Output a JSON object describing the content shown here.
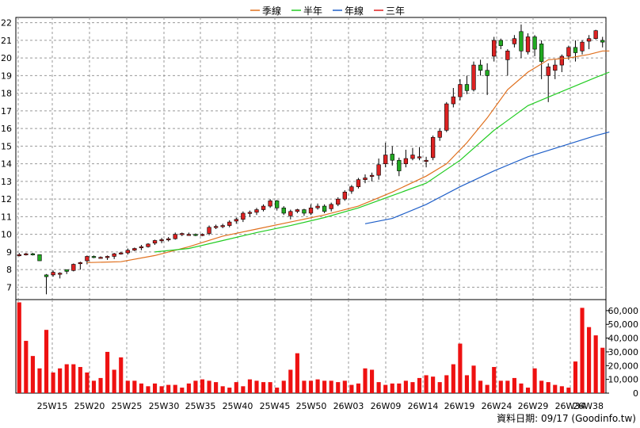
{
  "legend": {
    "items": [
      {
        "label": "季線",
        "color": "#e0701e"
      },
      {
        "label": "半年",
        "color": "#22cc22"
      },
      {
        "label": "年線",
        "color": "#1f5fc8"
      },
      {
        "label": "三年",
        "color": "#e02020"
      }
    ]
  },
  "footer": {
    "text": "資料日期: 09/17 (Goodinfo.tw)"
  },
  "colors": {
    "up": "#dd2222",
    "down": "#22aa22",
    "volume": "#ee1111",
    "grid": "#999999"
  },
  "chart_data": [
    {
      "type": "candlestick",
      "title": "",
      "ylim": [
        6.3,
        22.3
      ],
      "y_ticks": [
        "7",
        "8",
        "9",
        "10",
        "11",
        "12",
        "13",
        "14",
        "15",
        "16",
        "17",
        "18",
        "19",
        "20",
        "21",
        "22"
      ],
      "x_ticks": [
        "25W15",
        "25W20",
        "25W25",
        "25W30",
        "25W35",
        "25W40",
        "25W45",
        "25W50",
        "26W03",
        "26W09",
        "26W14",
        "26W19",
        "26W24",
        "26W29",
        "26W34",
        "26W38"
      ],
      "ohlc": [
        [
          8.85,
          8.95,
          8.75,
          8.85
        ],
        [
          8.85,
          8.95,
          8.8,
          8.9
        ],
        [
          8.9,
          8.95,
          8.8,
          8.85
        ],
        [
          8.85,
          8.85,
          8.5,
          8.5
        ],
        [
          7.7,
          7.75,
          6.6,
          7.6
        ],
        [
          7.7,
          7.95,
          7.6,
          7.85
        ],
        [
          7.75,
          7.85,
          7.5,
          7.8
        ],
        [
          8.0,
          8.0,
          7.75,
          7.9
        ],
        [
          7.95,
          8.35,
          7.9,
          8.3
        ],
        [
          8.4,
          8.45,
          8.0,
          8.4
        ],
        [
          8.5,
          8.8,
          8.3,
          8.75
        ],
        [
          8.75,
          8.8,
          8.65,
          8.7
        ],
        [
          8.7,
          8.75,
          8.65,
          8.7
        ],
        [
          8.7,
          8.8,
          8.55,
          8.75
        ],
        [
          8.75,
          8.95,
          8.6,
          8.9
        ],
        [
          8.9,
          9.0,
          8.85,
          8.95
        ],
        [
          8.95,
          9.2,
          8.85,
          9.1
        ],
        [
          9.1,
          9.25,
          9.05,
          9.2
        ],
        [
          9.25,
          9.4,
          9.1,
          9.3
        ],
        [
          9.3,
          9.5,
          9.25,
          9.45
        ],
        [
          9.5,
          9.7,
          9.4,
          9.65
        ],
        [
          9.65,
          9.8,
          9.5,
          9.7
        ],
        [
          9.7,
          9.85,
          9.6,
          9.75
        ],
        [
          9.75,
          10.1,
          9.7,
          10.0
        ],
        [
          10.0,
          10.1,
          9.9,
          10.05
        ],
        [
          10.0,
          10.1,
          9.95,
          10.0
        ],
        [
          10.0,
          10.05,
          9.9,
          9.95
        ],
        [
          9.95,
          10.05,
          9.9,
          10.0
        ],
        [
          10.05,
          10.5,
          9.95,
          10.4
        ],
        [
          10.4,
          10.55,
          10.3,
          10.45
        ],
        [
          10.45,
          10.6,
          10.35,
          10.5
        ],
        [
          10.5,
          10.8,
          10.4,
          10.7
        ],
        [
          10.75,
          10.95,
          10.6,
          10.85
        ],
        [
          10.85,
          11.3,
          10.7,
          11.2
        ],
        [
          11.2,
          11.35,
          11.0,
          11.25
        ],
        [
          11.25,
          11.5,
          11.1,
          11.4
        ],
        [
          11.4,
          11.7,
          11.3,
          11.6
        ],
        [
          11.6,
          12.0,
          11.5,
          11.9
        ],
        [
          11.9,
          11.95,
          11.35,
          11.5
        ],
        [
          11.5,
          11.6,
          11.1,
          11.2
        ],
        [
          11.05,
          11.4,
          10.85,
          11.3
        ],
        [
          11.3,
          11.45,
          11.2,
          11.4
        ],
        [
          11.4,
          11.45,
          11.05,
          11.2
        ],
        [
          11.2,
          11.7,
          11.1,
          11.5
        ],
        [
          11.5,
          11.75,
          11.4,
          11.6
        ],
        [
          11.6,
          11.7,
          11.2,
          11.3
        ],
        [
          11.45,
          11.8,
          11.3,
          11.7
        ],
        [
          11.7,
          12.1,
          11.6,
          12.0
        ],
        [
          12.0,
          12.5,
          11.9,
          12.4
        ],
        [
          12.45,
          12.8,
          12.3,
          12.7
        ],
        [
          12.7,
          13.2,
          12.6,
          13.1
        ],
        [
          13.1,
          13.4,
          12.9,
          13.2
        ],
        [
          13.3,
          13.5,
          13.0,
          13.35
        ],
        [
          13.35,
          14.3,
          13.1,
          13.95
        ],
        [
          14.0,
          15.2,
          13.8,
          14.5
        ],
        [
          14.55,
          15.0,
          13.9,
          14.2
        ],
        [
          14.2,
          14.35,
          13.3,
          13.6
        ],
        [
          14.0,
          14.8,
          13.8,
          14.3
        ],
        [
          14.3,
          14.9,
          14.2,
          14.5
        ],
        [
          14.4,
          14.95,
          14.2,
          14.4
        ],
        [
          14.2,
          14.4,
          13.8,
          14.2
        ],
        [
          14.35,
          15.6,
          14.2,
          15.5
        ],
        [
          15.5,
          16.0,
          15.3,
          15.85
        ],
        [
          15.9,
          17.5,
          15.8,
          17.4
        ],
        [
          17.4,
          18.3,
          17.2,
          17.8
        ],
        [
          17.8,
          18.8,
          17.6,
          18.5
        ],
        [
          18.5,
          19.0,
          17.95,
          18.15
        ],
        [
          18.2,
          19.8,
          18.1,
          19.6
        ],
        [
          19.6,
          19.9,
          19.0,
          19.3
        ],
        [
          19.3,
          19.7,
          17.9,
          19.0
        ],
        [
          20.1,
          21.2,
          19.8,
          21.0
        ],
        [
          21.0,
          21.1,
          20.5,
          20.7
        ],
        [
          19.9,
          20.5,
          19.0,
          20.4
        ],
        [
          20.8,
          21.3,
          20.6,
          21.1
        ],
        [
          21.5,
          21.9,
          20.0,
          20.4
        ],
        [
          20.35,
          21.4,
          20.2,
          21.2
        ],
        [
          21.2,
          21.3,
          20.1,
          20.5
        ],
        [
          20.8,
          21.0,
          18.8,
          19.8
        ],
        [
          19.0,
          19.7,
          17.5,
          19.5
        ],
        [
          19.3,
          19.9,
          18.8,
          19.6
        ],
        [
          19.6,
          20.2,
          19.2,
          20.1
        ],
        [
          20.1,
          20.7,
          19.9,
          20.6
        ],
        [
          20.6,
          21.0,
          19.8,
          20.3
        ],
        [
          20.4,
          21.0,
          20.2,
          20.9
        ],
        [
          20.95,
          21.3,
          20.5,
          21.1
        ],
        [
          21.1,
          21.6,
          21.05,
          21.55
        ],
        [
          21.0,
          21.2,
          20.6,
          20.9
        ]
      ],
      "ma_quarter": [
        [
          10,
          8.4
        ],
        [
          15,
          8.45
        ],
        [
          20,
          8.8
        ],
        [
          25,
          9.3
        ],
        [
          30,
          9.9
        ],
        [
          35,
          10.3
        ],
        [
          40,
          10.7
        ],
        [
          45,
          11.1
        ],
        [
          50,
          11.6
        ],
        [
          55,
          12.4
        ],
        [
          60,
          13.3
        ],
        [
          63,
          14.0
        ],
        [
          66,
          15.2
        ],
        [
          69,
          16.6
        ],
        [
          72,
          18.2
        ],
        [
          75,
          19.2
        ],
        [
          78,
          19.9
        ],
        [
          81,
          20.0
        ],
        [
          84,
          20.2
        ],
        [
          86,
          20.4
        ],
        [
          87,
          20.4
        ]
      ],
      "ma_half": [
        [
          20,
          9.0
        ],
        [
          25,
          9.2
        ],
        [
          30,
          9.65
        ],
        [
          35,
          10.1
        ],
        [
          40,
          10.5
        ],
        [
          45,
          10.95
        ],
        [
          50,
          11.5
        ],
        [
          55,
          12.2
        ],
        [
          60,
          12.9
        ],
        [
          65,
          14.2
        ],
        [
          70,
          15.9
        ],
        [
          75,
          17.3
        ],
        [
          80,
          18.1
        ],
        [
          85,
          18.9
        ],
        [
          87,
          19.2
        ]
      ],
      "ma_year": [
        [
          51,
          10.6
        ],
        [
          55,
          10.9
        ],
        [
          60,
          11.7
        ],
        [
          65,
          12.7
        ],
        [
          70,
          13.6
        ],
        [
          75,
          14.4
        ],
        [
          80,
          15.0
        ],
        [
          85,
          15.6
        ],
        [
          87,
          15.8
        ]
      ]
    },
    {
      "type": "bar",
      "series_name": "三年",
      "ylim": [
        0,
        68000
      ],
      "y_ticks": [
        "0",
        "10,000",
        "20,000",
        "30,000",
        "40,000",
        "50,000",
        "60,000"
      ],
      "values": [
        66000,
        38000,
        27000,
        18000,
        46000,
        15000,
        18000,
        21000,
        21000,
        19000,
        15000,
        9000,
        11000,
        30000,
        17000,
        26000,
        9000,
        9000,
        7000,
        5000,
        7000,
        5000,
        6000,
        6000,
        4000,
        7000,
        9000,
        10000,
        9000,
        8000,
        5000,
        4000,
        8000,
        5000,
        10000,
        9000,
        8000,
        8000,
        4000,
        9000,
        17000,
        29000,
        9000,
        9000,
        10000,
        9000,
        9000,
        8000,
        9000,
        6000,
        7000,
        18000,
        17000,
        8000,
        6000,
        7000,
        7000,
        9000,
        8000,
        11000,
        13000,
        12000,
        8000,
        13000,
        21000,
        36000,
        13000,
        20000,
        9000,
        6000,
        19000,
        9000,
        9000,
        11000,
        7000,
        4000,
        18000,
        9000,
        8000,
        6000,
        5000,
        4000,
        23000,
        62000,
        48000,
        42000,
        33000
      ]
    }
  ]
}
